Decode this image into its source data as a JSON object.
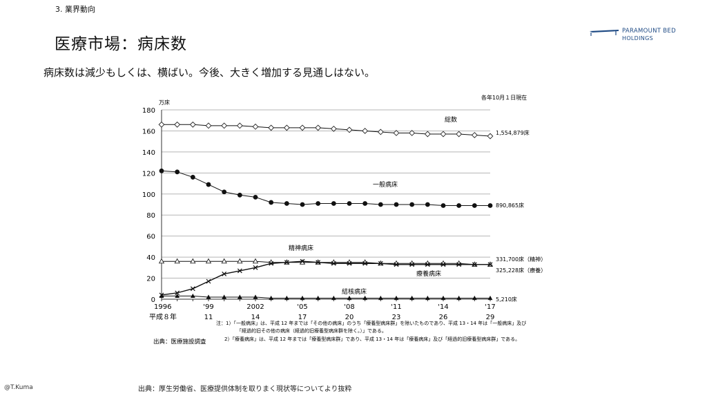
{
  "header": {
    "section": "3. 業界動向",
    "title": "医療市場：病床数",
    "subtitle": "病床数は減少もしくは、横ばい。今後、大きく増加する見通しはない。"
  },
  "logo": {
    "line1": "PARAMOUNT BED",
    "line2": "HOLDINGS",
    "color": "#1e4a84"
  },
  "footer": {
    "author": "@T.Kuma",
    "source": "出典：厚生労働省、医療提供体制を取りまく現状等についてより抜粋"
  },
  "chart_data": {
    "type": "line",
    "unit_label": "万床",
    "as_of_note": "各年10月１日現在",
    "ylim": [
      0,
      180
    ],
    "yticks": [
      0,
      20,
      40,
      60,
      80,
      100,
      120,
      140,
      160,
      180
    ],
    "x": [
      1996,
      1997,
      1998,
      1999,
      2000,
      2001,
      2002,
      2003,
      2004,
      2005,
      2006,
      2007,
      2008,
      2009,
      2010,
      2011,
      2012,
      2013,
      2014,
      2015,
      2016,
      2017
    ],
    "xtick_labels": [
      {
        "year": 1996,
        "top": "1996",
        "bottom": "平成８年"
      },
      {
        "year": 1999,
        "top": "'99",
        "bottom": "11"
      },
      {
        "year": 2002,
        "top": "2002",
        "bottom": "14"
      },
      {
        "year": 2005,
        "top": "'05",
        "bottom": "17"
      },
      {
        "year": 2008,
        "top": "'08",
        "bottom": "20"
      },
      {
        "year": 2011,
        "top": "'11",
        "bottom": "23"
      },
      {
        "year": 2014,
        "top": "'14",
        "bottom": "26"
      },
      {
        "year": 2017,
        "top": "'17",
        "bottom": "29"
      }
    ],
    "series": [
      {
        "key": "total",
        "name": "総数",
        "marker": "diamond-open",
        "end_label": "1,554,879床",
        "values": [
          166,
          166,
          166,
          165,
          165,
          165,
          164,
          163,
          163,
          163,
          163,
          162,
          161,
          160,
          159,
          158,
          158,
          157,
          157,
          157,
          156,
          155
        ]
      },
      {
        "key": "general",
        "name": "一般病床",
        "marker": "circle-filled",
        "end_label": "890,865床",
        "values": [
          122,
          121,
          116,
          109,
          102,
          99,
          97,
          92,
          91,
          90,
          91,
          91,
          91,
          91,
          90,
          90,
          90,
          90,
          89,
          89,
          89,
          89
        ]
      },
      {
        "key": "psych",
        "name": "精神病床",
        "marker": "triangle-open",
        "end_label": "331,700床（精神）",
        "values": [
          36,
          36,
          36,
          36,
          36,
          36,
          36,
          35,
          35,
          35,
          35,
          35,
          35,
          35,
          34,
          34,
          34,
          34,
          34,
          34,
          33,
          33
        ]
      },
      {
        "key": "care",
        "name": "療養病床",
        "marker": "x",
        "end_label": "325,228床（療養）",
        "values": [
          4,
          6,
          10,
          17,
          24,
          27,
          30,
          34,
          35,
          36,
          35,
          34,
          34,
          34,
          34,
          33,
          33,
          33,
          33,
          33,
          33,
          33
        ]
      },
      {
        "key": "tb",
        "name": "結核病床",
        "marker": "triangle-filled",
        "end_label": "5,210床",
        "values": [
          3,
          3,
          3,
          2,
          2,
          2,
          2,
          1,
          1,
          1,
          1,
          1,
          1,
          1,
          1,
          1,
          1,
          1,
          1,
          1,
          1,
          1
        ]
      }
    ],
    "source_note": "出典：医療施設調査",
    "notes": [
      "注：1）「一般病床」は、平成 12 年までは「その他の病床」のうち「療養型病床群」を除いたものであり、平成 13・14 年は「一般病床」及び",
      "「経過的旧その他の病床（経過的旧療養型病床群を除く。）」である。",
      "2）「療養病床」は、平成 12 年までは「療養型病床群」であり、平成 13・14 年は「療養病床」及び「経過的旧療養型病床群」である。"
    ]
  }
}
